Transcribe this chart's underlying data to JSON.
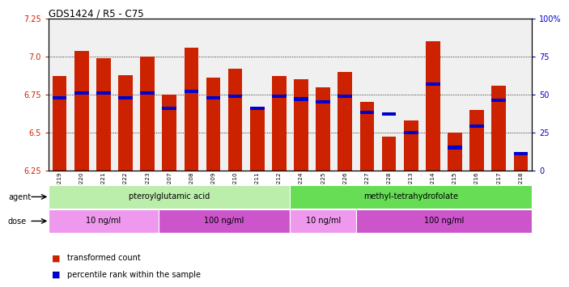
{
  "title": "GDS1424 / R5 - C75",
  "samples": [
    "GSM69219",
    "GSM69220",
    "GSM69221",
    "GSM69222",
    "GSM69223",
    "GSM69207",
    "GSM69208",
    "GSM69209",
    "GSM69210",
    "GSM69211",
    "GSM69212",
    "GSM69224",
    "GSM69225",
    "GSM69226",
    "GSM69227",
    "GSM69228",
    "GSM69213",
    "GSM69214",
    "GSM69215",
    "GSM69216",
    "GSM69217",
    "GSM69218"
  ],
  "bar_values": [
    6.87,
    7.04,
    6.99,
    6.88,
    7.0,
    6.75,
    7.06,
    6.86,
    6.92,
    6.67,
    6.87,
    6.85,
    6.8,
    6.9,
    6.7,
    6.47,
    6.58,
    7.1,
    6.5,
    6.65,
    6.81,
    6.37
  ],
  "blue_values": [
    6.73,
    6.76,
    6.76,
    6.73,
    6.76,
    6.66,
    6.77,
    6.73,
    6.74,
    6.66,
    6.74,
    6.72,
    6.7,
    6.74,
    6.63,
    6.62,
    6.5,
    6.82,
    6.4,
    6.54,
    6.71,
    6.36
  ],
  "ylim": [
    6.25,
    7.25
  ],
  "yticks": [
    6.25,
    6.5,
    6.75,
    7.0,
    7.25
  ],
  "right_yticks": [
    0,
    25,
    50,
    75,
    100
  ],
  "bar_color": "#cc2200",
  "blue_color": "#0000cc",
  "plot_bg": "#f0f0f0",
  "agent_groups": [
    {
      "label": "pteroylglutamic acid",
      "start": 0,
      "end": 11,
      "color": "#bbeeaa"
    },
    {
      "label": "methyl-tetrahydrofolate",
      "start": 11,
      "end": 22,
      "color": "#66dd55"
    }
  ],
  "dose_groups": [
    {
      "label": "10 ng/ml",
      "start": 0,
      "end": 5,
      "color": "#ee99ee"
    },
    {
      "label": "100 ng/ml",
      "start": 5,
      "end": 11,
      "color": "#cc55cc"
    },
    {
      "label": "10 ng/ml",
      "start": 11,
      "end": 14,
      "color": "#ee99ee"
    },
    {
      "label": "100 ng/ml",
      "start": 14,
      "end": 22,
      "color": "#cc55cc"
    }
  ],
  "legend_items": [
    {
      "label": "transformed count",
      "color": "#cc2200"
    },
    {
      "label": "percentile rank within the sample",
      "color": "#0000cc"
    }
  ]
}
